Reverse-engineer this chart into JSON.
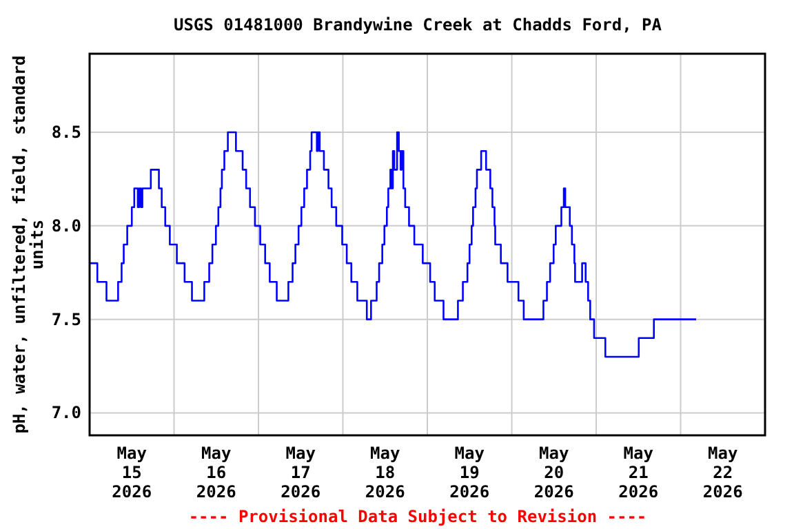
{
  "chart_data": {
    "type": "step",
    "title": "USGS 01481000 Brandywine Creek at Chadds Ford, PA",
    "ylabel": "pH, water, unfiltered, field, standard units",
    "annotations": [
      "---- Provisional Data Subject to Revision ----"
    ],
    "series": [
      {
        "color": "#0000ff",
        "x": [
          "2026-05-15T00:00",
          "2026-05-15T02:12",
          "2026-05-15T04:48",
          "2026-05-15T08:06",
          "2026-05-15T09:06",
          "2026-05-15T09:42",
          "2026-05-15T10:42",
          "2026-05-15T12:00",
          "2026-05-15T12:42",
          "2026-05-15T13:42",
          "2026-05-15T14:06",
          "2026-05-15T14:36",
          "2026-05-15T15:00",
          "2026-05-15T17:24",
          "2026-05-15T19:42",
          "2026-05-15T20:30",
          "2026-05-15T21:30",
          "2026-05-15T22:48",
          "2026-05-16T00:48",
          "2026-05-16T03:00",
          "2026-05-16T05:06",
          "2026-05-16T08:36",
          "2026-05-16T10:00",
          "2026-05-16T10:54",
          "2026-05-16T11:54",
          "2026-05-16T12:36",
          "2026-05-16T13:12",
          "2026-05-16T13:36",
          "2026-05-16T14:18",
          "2026-05-16T15:18",
          "2026-05-16T17:36",
          "2026-05-16T19:30",
          "2026-05-16T20:30",
          "2026-05-16T21:36",
          "2026-05-16T23:00",
          "2026-05-17T00:30",
          "2026-05-17T01:54",
          "2026-05-17T03:12",
          "2026-05-17T05:12",
          "2026-05-17T08:30",
          "2026-05-17T09:42",
          "2026-05-17T10:30",
          "2026-05-17T11:24",
          "2026-05-17T12:12",
          "2026-05-17T13:00",
          "2026-05-17T13:48",
          "2026-05-17T14:42",
          "2026-05-17T15:06",
          "2026-05-17T16:36",
          "2026-05-17T16:54",
          "2026-05-17T17:24",
          "2026-05-17T18:36",
          "2026-05-17T19:54",
          "2026-05-17T20:48",
          "2026-05-17T22:06",
          "2026-05-17T23:48",
          "2026-05-18T01:06",
          "2026-05-18T02:24",
          "2026-05-18T04:06",
          "2026-05-18T06:48",
          "2026-05-18T08:00",
          "2026-05-18T09:36",
          "2026-05-18T10:18",
          "2026-05-18T11:12",
          "2026-05-18T11:48",
          "2026-05-18T12:30",
          "2026-05-18T12:54",
          "2026-05-18T13:30",
          "2026-05-18T13:48",
          "2026-05-18T14:12",
          "2026-05-18T14:36",
          "2026-05-18T15:24",
          "2026-05-18T15:54",
          "2026-05-18T16:24",
          "2026-05-18T16:42",
          "2026-05-18T17:12",
          "2026-05-18T17:42",
          "2026-05-18T18:48",
          "2026-05-18T20:18",
          "2026-05-18T22:42",
          "2026-05-19T00:48",
          "2026-05-19T02:06",
          "2026-05-19T04:36",
          "2026-05-19T08:42",
          "2026-05-19T10:06",
          "2026-05-19T11:24",
          "2026-05-19T12:00",
          "2026-05-19T12:36",
          "2026-05-19T13:00",
          "2026-05-19T13:42",
          "2026-05-19T14:06",
          "2026-05-19T15:18",
          "2026-05-19T16:42",
          "2026-05-19T17:54",
          "2026-05-19T18:30",
          "2026-05-19T19:06",
          "2026-05-19T19:18",
          "2026-05-19T20:54",
          "2026-05-19T22:48",
          "2026-05-20T01:54",
          "2026-05-20T03:24",
          "2026-05-20T09:00",
          "2026-05-20T10:00",
          "2026-05-20T10:54",
          "2026-05-20T11:54",
          "2026-05-20T12:30",
          "2026-05-20T14:06",
          "2026-05-20T14:48",
          "2026-05-20T15:12",
          "2026-05-20T16:30",
          "2026-05-20T17:06",
          "2026-05-20T17:48",
          "2026-05-20T18:00",
          "2026-05-20T20:00",
          "2026-05-20T21:00",
          "2026-05-20T21:42",
          "2026-05-20T22:18",
          "2026-05-20T23:24",
          "2026-05-21T02:36",
          "2026-05-21T12:06",
          "2026-05-21T16:24",
          "2026-05-22T04:24"
        ],
        "values": [
          7.8,
          7.7,
          7.6,
          7.7,
          7.8,
          7.9,
          8.0,
          8.1,
          8.2,
          8.1,
          8.2,
          8.1,
          8.2,
          8.3,
          8.2,
          8.1,
          8.0,
          7.9,
          7.8,
          7.7,
          7.6,
          7.7,
          7.8,
          7.9,
          8.0,
          8.1,
          8.2,
          8.3,
          8.4,
          8.5,
          8.4,
          8.3,
          8.2,
          8.1,
          8.0,
          7.9,
          7.8,
          7.7,
          7.6,
          7.7,
          7.8,
          7.9,
          8.0,
          8.1,
          8.2,
          8.3,
          8.4,
          8.5,
          8.4,
          8.5,
          8.4,
          8.3,
          8.2,
          8.1,
          8.0,
          7.9,
          7.8,
          7.7,
          7.6,
          7.5,
          7.6,
          7.7,
          7.8,
          7.9,
          8.0,
          8.1,
          8.2,
          8.3,
          8.2,
          8.4,
          8.3,
          8.5,
          8.4,
          8.3,
          8.4,
          8.2,
          8.1,
          8.0,
          7.9,
          7.8,
          7.7,
          7.6,
          7.5,
          7.6,
          7.7,
          7.8,
          7.9,
          8.0,
          8.1,
          8.2,
          8.3,
          8.4,
          8.3,
          8.2,
          8.1,
          8.0,
          7.9,
          7.8,
          7.7,
          7.6,
          7.5,
          7.6,
          7.7,
          7.8,
          7.9,
          8.0,
          8.1,
          8.2,
          8.1,
          8.0,
          7.9,
          7.8,
          7.7,
          7.8,
          7.7,
          7.6,
          7.5,
          7.4,
          7.3,
          7.4,
          7.5,
          7.5
        ]
      }
    ],
    "xlim": [
      "2026-05-15",
      "2026-05-23"
    ],
    "xticks": [
      {
        "value": "2026-05-15T12:00",
        "label": "May\n15\n2026"
      },
      {
        "value": "2026-05-16",
        "label": null
      },
      {
        "value": "2026-05-16T12:00",
        "label": "May\n16\n2026"
      },
      {
        "value": "2026-05-17",
        "label": null
      },
      {
        "value": "2026-05-17T12:00",
        "label": "May\n17\n2026"
      },
      {
        "value": "2026-05-18",
        "label": null
      },
      {
        "value": "2026-05-18T12:00",
        "label": "May\n18\n2026"
      },
      {
        "value": "2026-05-19",
        "label": null
      },
      {
        "value": "2026-05-19T12:00",
        "label": "May\n19\n2026"
      },
      {
        "value": "2026-05-20",
        "label": null
      },
      {
        "value": "2026-05-20T12:00",
        "label": "May\n20\n2026"
      },
      {
        "value": "2026-05-21",
        "label": null
      },
      {
        "value": "2026-05-21T12:00",
        "label": "May\n21\n2026"
      },
      {
        "value": "2026-05-22",
        "label": null
      },
      {
        "value": "2026-05-22T12:00",
        "label": "May\n22\n2026"
      }
    ],
    "ylim": [
      6.88,
      8.92
    ],
    "yticks": [
      {
        "value": 7,
        "label": "7.0"
      },
      {
        "value": 7.5,
        "label": "7.5"
      },
      {
        "value": 8,
        "label": "8.0"
      },
      {
        "value": 8.5,
        "label": "8.5"
      }
    ],
    "grid": true,
    "line_style": "solid"
  }
}
